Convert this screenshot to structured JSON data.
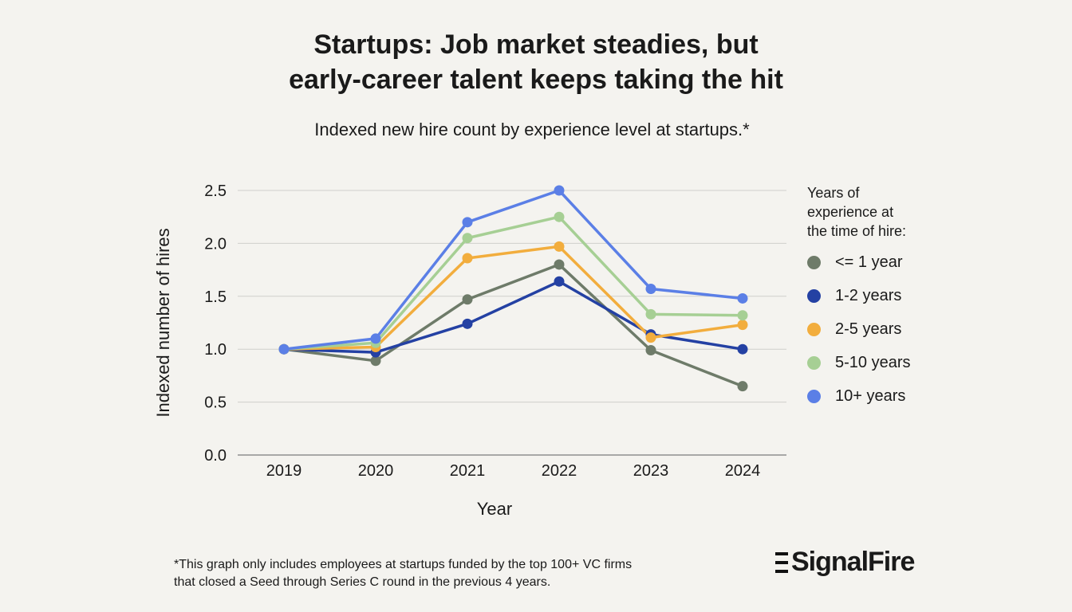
{
  "header": {
    "title_line1": "Startups: Job market steadies, but",
    "title_line2": "early-career talent keeps taking the hit",
    "subtitle": "Indexed new hire count by experience level at startups.*"
  },
  "legend": {
    "title_lines": [
      "Years of",
      "experience at",
      "the time of hire:"
    ]
  },
  "footnote": {
    "line1": "*This graph only includes employees at startups funded by the top 100+ VC firms",
    "line2": "that closed a Seed through Series C round in the previous 4 years."
  },
  "logo": {
    "text": "SignalFire"
  },
  "chart_data": {
    "type": "line",
    "xlabel": "Year",
    "ylabel": "Indexed number of hires",
    "ylim": [
      0,
      2.5
    ],
    "yticks": [
      0.0,
      0.5,
      1.0,
      1.5,
      2.0,
      2.5
    ],
    "ytick_labels": [
      "0.0",
      "0.5",
      "1.0",
      "1.5",
      "2.0",
      "2.5"
    ],
    "grid": true,
    "legend_position": "right",
    "categories": [
      "2019",
      "2020",
      "2021",
      "2022",
      "2023",
      "2024"
    ],
    "series": [
      {
        "name": "<= 1 year",
        "color": "#6e7b69",
        "values": [
          1.0,
          0.89,
          1.47,
          1.8,
          0.99,
          0.65
        ]
      },
      {
        "name": "1-2 years",
        "color": "#2441a3",
        "values": [
          1.0,
          0.97,
          1.24,
          1.64,
          1.14,
          1.0
        ]
      },
      {
        "name": "2-5 years",
        "color": "#f2ad3d",
        "values": [
          1.0,
          1.02,
          1.86,
          1.97,
          1.11,
          1.23
        ]
      },
      {
        "name": "5-10 years",
        "color": "#a6cf94",
        "values": [
          1.0,
          1.06,
          2.05,
          2.25,
          1.33,
          1.32
        ]
      },
      {
        "name": "10+ years",
        "color": "#5b7fe6",
        "values": [
          1.0,
          1.1,
          2.2,
          2.5,
          1.57,
          1.48
        ]
      }
    ]
  }
}
